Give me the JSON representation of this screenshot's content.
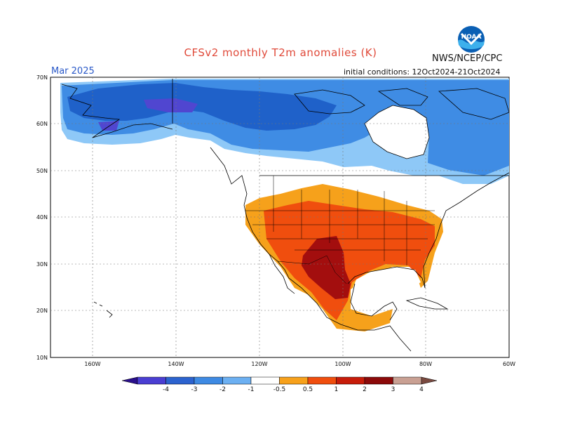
{
  "title": "CFSv2 monthly T2m anomalies (K)",
  "organization": "NWS/NCEP/CPC",
  "logo_text": "NOAA",
  "valid_month": "Mar 2025",
  "initial_conditions": "initial conditions: 12Oct2024-21Oct2024",
  "lat_labels": [
    "70N",
    "60N",
    "50N",
    "40N",
    "30N",
    "20N",
    "10N"
  ],
  "lon_labels": [
    "160W",
    "140W",
    "120W",
    "100W",
    "80W",
    "60W"
  ],
  "colorbar": {
    "ticks": [
      "-4",
      "-3",
      "-2",
      "-1",
      "-0.5",
      "0.5",
      "1",
      "2",
      "3",
      "4"
    ],
    "colors": [
      "#2a0f8c",
      "#4a3ed2",
      "#2c63cf",
      "#3e8ae3",
      "#6cb0f2",
      "#ffffff",
      "#f7a11b",
      "#f04e0e",
      "#c71c0a",
      "#8c0a0a",
      "#c9a093",
      "#7a4a40"
    ]
  }
}
